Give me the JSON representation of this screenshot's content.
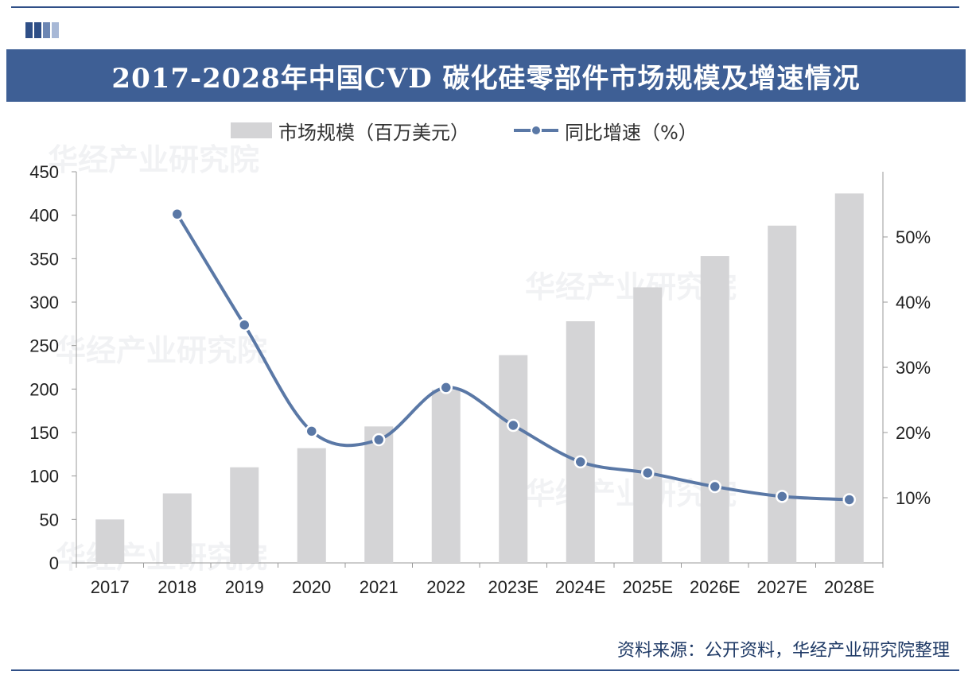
{
  "title": "2017-2028年中国CVD 碳化硅零部件市场规模及增速情况",
  "legend": {
    "bar_label": "市场规模（百万美元）",
    "line_label": "同比增速（%）"
  },
  "source": "资料来源：公开资料，华经产业研究院整理",
  "watermark": "华经产业研究院",
  "colors": {
    "banner": "#3e5f95",
    "bar": "#d4d4d6",
    "line": "#5a78a6",
    "frame": "#2f4f87"
  },
  "chart_data": {
    "type": "bar",
    "categories": [
      "2017",
      "2018",
      "2019",
      "2020",
      "2021",
      "2022",
      "2023E",
      "2024E",
      "2025E",
      "2026E",
      "2027E",
      "2028E"
    ],
    "series": [
      {
        "name": "市场规模（百万美元）",
        "type": "bar",
        "axis": "left",
        "values": [
          50,
          80,
          110,
          132,
          157,
          199,
          239,
          278,
          317,
          353,
          388,
          425
        ]
      },
      {
        "name": "同比增速（%）",
        "type": "line",
        "axis": "right",
        "values": [
          null,
          53.5,
          36.5,
          20.2,
          18.9,
          26.9,
          21.1,
          15.5,
          13.8,
          11.7,
          10.2,
          9.7
        ]
      }
    ],
    "left_axis": {
      "ylim": [
        0,
        450
      ],
      "ticks": [
        "0",
        "50",
        "100",
        "150",
        "200",
        "250",
        "300",
        "350",
        "400",
        "450"
      ]
    },
    "right_axis": {
      "ylim": [
        0,
        60
      ],
      "ticks": [
        "10%",
        "20%",
        "30%",
        "40%",
        "50%"
      ]
    }
  }
}
